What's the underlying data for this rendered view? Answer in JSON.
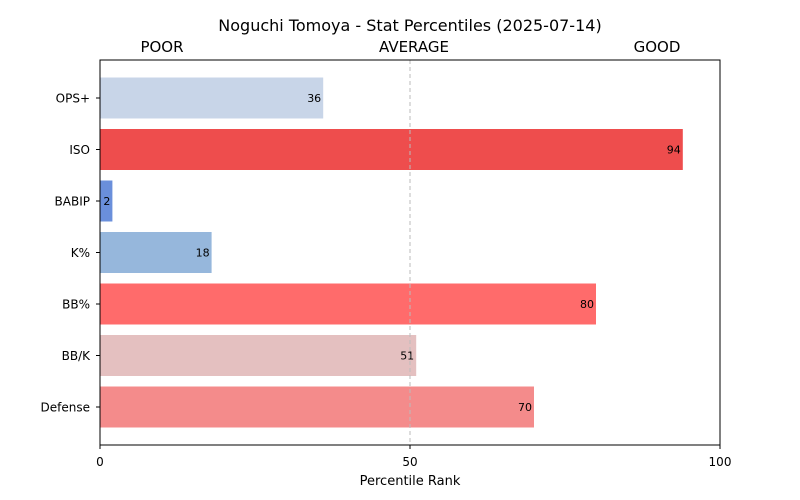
{
  "chart_data": {
    "type": "bar",
    "orientation": "horizontal",
    "title": "Noguchi Tomoya - Stat Percentiles (2025-07-14)",
    "xlabel": "Percentile Rank",
    "ylabel": "",
    "xlim": [
      0,
      100
    ],
    "xticks": [
      0,
      50,
      100
    ],
    "reference_line": 50,
    "band_labels": [
      "POOR",
      "AVERAGE",
      "GOOD"
    ],
    "categories": [
      "OPS+",
      "ISO",
      "BABIP",
      "K%",
      "BB%",
      "BB/K",
      "Defense"
    ],
    "values": [
      36,
      94,
      2,
      18,
      80,
      51,
      70
    ],
    "colors": [
      "#c8d5e8",
      "#ee4d4d",
      "#6a8fdb",
      "#96b7dc",
      "#ff6b6b",
      "#e4c0c0",
      "#f48b8b"
    ],
    "grid": false,
    "legend": "none"
  }
}
